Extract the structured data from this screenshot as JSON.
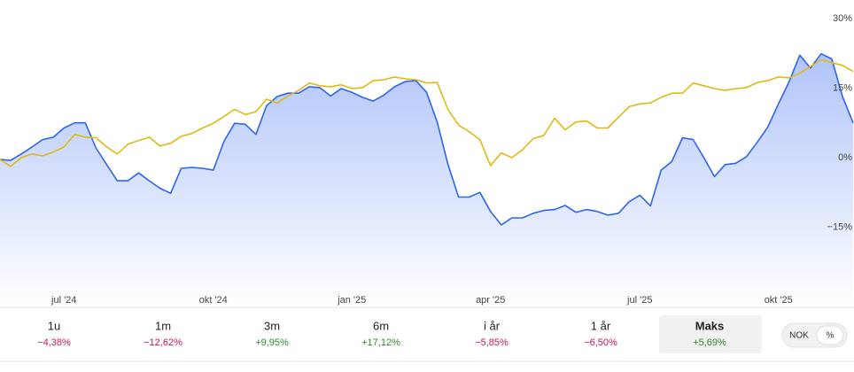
{
  "chart_data": {
    "type": "line",
    "categories": [
      null,
      null,
      null,
      null,
      null,
      null,
      "jul '24",
      null,
      null,
      null,
      null,
      null,
      null,
      null,
      null,
      null,
      null,
      null,
      null,
      null,
      "okt '24",
      null,
      null,
      null,
      null,
      null,
      null,
      null,
      null,
      null,
      null,
      null,
      null,
      "jan '25",
      null,
      null,
      null,
      null,
      null,
      null,
      null,
      null,
      null,
      null,
      null,
      null,
      "apr '25",
      null,
      null,
      null,
      null,
      null,
      null,
      null,
      null,
      null,
      null,
      null,
      null,
      null,
      "jul '25",
      null,
      null,
      null,
      null,
      null,
      null,
      null,
      null,
      null,
      null,
      null,
      null,
      "okt '25",
      null,
      null,
      null,
      null,
      null,
      null,
      null
    ],
    "series": [
      {
        "color": "#2f64f0",
        "values": [
          -0.4,
          -0.6,
          0.8,
          2.3,
          3.9,
          4.4,
          6.4,
          7.5,
          7.5,
          2.1,
          -1.5,
          -5.0,
          -5.0,
          -3.3,
          -5.0,
          -6.6,
          -7.7,
          -2.3,
          -2.1,
          -2.3,
          -2.7,
          3.5,
          7.4,
          7.2,
          5.0,
          11.2,
          13.2,
          13.9,
          13.9,
          15.3,
          15.1,
          13.3,
          14.9,
          14.1,
          13.0,
          12.2,
          13.5,
          15.3,
          16.4,
          16.6,
          14.1,
          7.7,
          -1.4,
          -8.5,
          -8.5,
          -7.5,
          -11.6,
          -14.5,
          -13.0,
          -13.0,
          -12.0,
          -11.4,
          -11.2,
          -10.3,
          -11.8,
          -11.2,
          -11.6,
          -12.4,
          -12.0,
          -9.5,
          -8.1,
          -10.4,
          -2.7,
          -0.8,
          4.3,
          3.9,
          0.0,
          -4.1,
          -1.5,
          -1.2,
          0.2,
          3.3,
          6.6,
          11.6,
          16.4,
          22.1,
          19.3,
          22.4,
          21.3,
          13.2,
          7.5
        ]
      },
      {
        "color": "#e2b714",
        "values": [
          -0.4,
          -1.9,
          0.0,
          0.8,
          0.4,
          1.2,
          2.3,
          5.0,
          4.4,
          4.3,
          2.3,
          0.8,
          2.9,
          3.7,
          4.4,
          2.5,
          3.1,
          4.6,
          5.2,
          6.4,
          7.4,
          8.9,
          10.4,
          9.3,
          9.9,
          12.6,
          11.8,
          13.3,
          14.5,
          16.1,
          15.5,
          15.3,
          15.7,
          14.9,
          15.1,
          16.6,
          16.8,
          17.4,
          17.0,
          16.8,
          16.1,
          16.2,
          10.4,
          7.0,
          5.6,
          3.9,
          -1.7,
          1.0,
          0.0,
          1.7,
          4.1,
          4.8,
          8.5,
          6.0,
          7.7,
          7.9,
          6.4,
          6.4,
          8.7,
          11.0,
          11.6,
          11.8,
          13.0,
          13.9,
          13.9,
          16.1,
          15.5,
          14.9,
          14.5,
          14.9,
          15.1,
          16.2,
          16.6,
          17.4,
          17.2,
          18.2,
          19.7,
          21.1,
          20.5,
          19.9,
          18.6
        ]
      }
    ],
    "ylim": [
      -30,
      34
    ],
    "yticks": [
      {
        "value": 30,
        "label": "30%"
      },
      {
        "value": 15,
        "label": "15%"
      },
      {
        "value": 0,
        "label": "0%"
      },
      {
        "value": -15,
        "label": "−15%"
      }
    ],
    "grid": false
  },
  "periods": [
    {
      "label": "1u",
      "change": "−4,38%"
    },
    {
      "label": "1m",
      "change": "−12,62%"
    },
    {
      "label": "3m",
      "change": "+9,95%"
    },
    {
      "label": "6m",
      "change": "+17,12%"
    },
    {
      "label": "i år",
      "change": "−5,85%"
    },
    {
      "label": "1 år",
      "change": "−6,50%"
    },
    {
      "label": "Maks",
      "change": "+5,69%"
    }
  ],
  "selected_period": 6,
  "units": [
    "NOK",
    "%"
  ],
  "selected_unit": 1
}
